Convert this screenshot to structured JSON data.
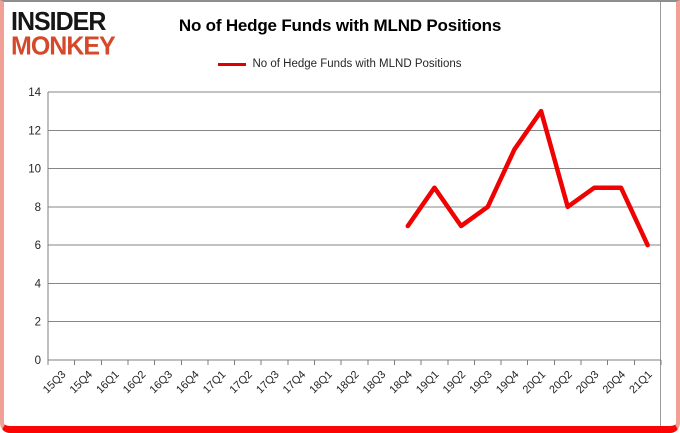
{
  "brand": {
    "line1": "INSIDER",
    "line2": "MONKEY",
    "line1_color": "#161616",
    "line2_color": "#d5492a"
  },
  "header": {
    "title": "No of Hedge Funds with MLND Positions"
  },
  "legend": {
    "label": "No of Hedge Funds with MLND Positions",
    "swatch_color": "#dd0000"
  },
  "colors": {
    "series_line": "#ee0202",
    "gridline": "#868686",
    "axis": "#7f7f7f",
    "tick_text": "#242424",
    "border_top": "#8e8e8e",
    "border_sides": "#f0a095",
    "border_bottom": "#fb0404"
  },
  "chart_data": {
    "type": "line",
    "title": "No of Hedge Funds with MLND Positions",
    "categories": [
      "15Q3",
      "15Q4",
      "16Q1",
      "16Q2",
      "16Q3",
      "16Q4",
      "17Q1",
      "17Q2",
      "17Q3",
      "17Q4",
      "18Q1",
      "18Q2",
      "18Q3",
      "18Q4",
      "19Q1",
      "19Q2",
      "19Q3",
      "19Q4",
      "20Q1",
      "20Q2",
      "20Q3",
      "20Q4",
      "21Q1"
    ],
    "series": [
      {
        "name": "No of Hedge Funds with MLND Positions",
        "color": "#ee0202",
        "values": [
          null,
          null,
          null,
          null,
          null,
          null,
          null,
          null,
          null,
          null,
          null,
          null,
          null,
          7,
          9,
          7,
          8,
          11,
          13,
          8,
          9,
          9,
          6
        ]
      }
    ],
    "xlabel": "",
    "ylabel": "",
    "ylim": [
      0,
      14
    ],
    "yticks": [
      0,
      2,
      4,
      6,
      8,
      10,
      12,
      14
    ],
    "grid": "horizontal",
    "legend_position": "top-center",
    "line_width": 4.5
  }
}
